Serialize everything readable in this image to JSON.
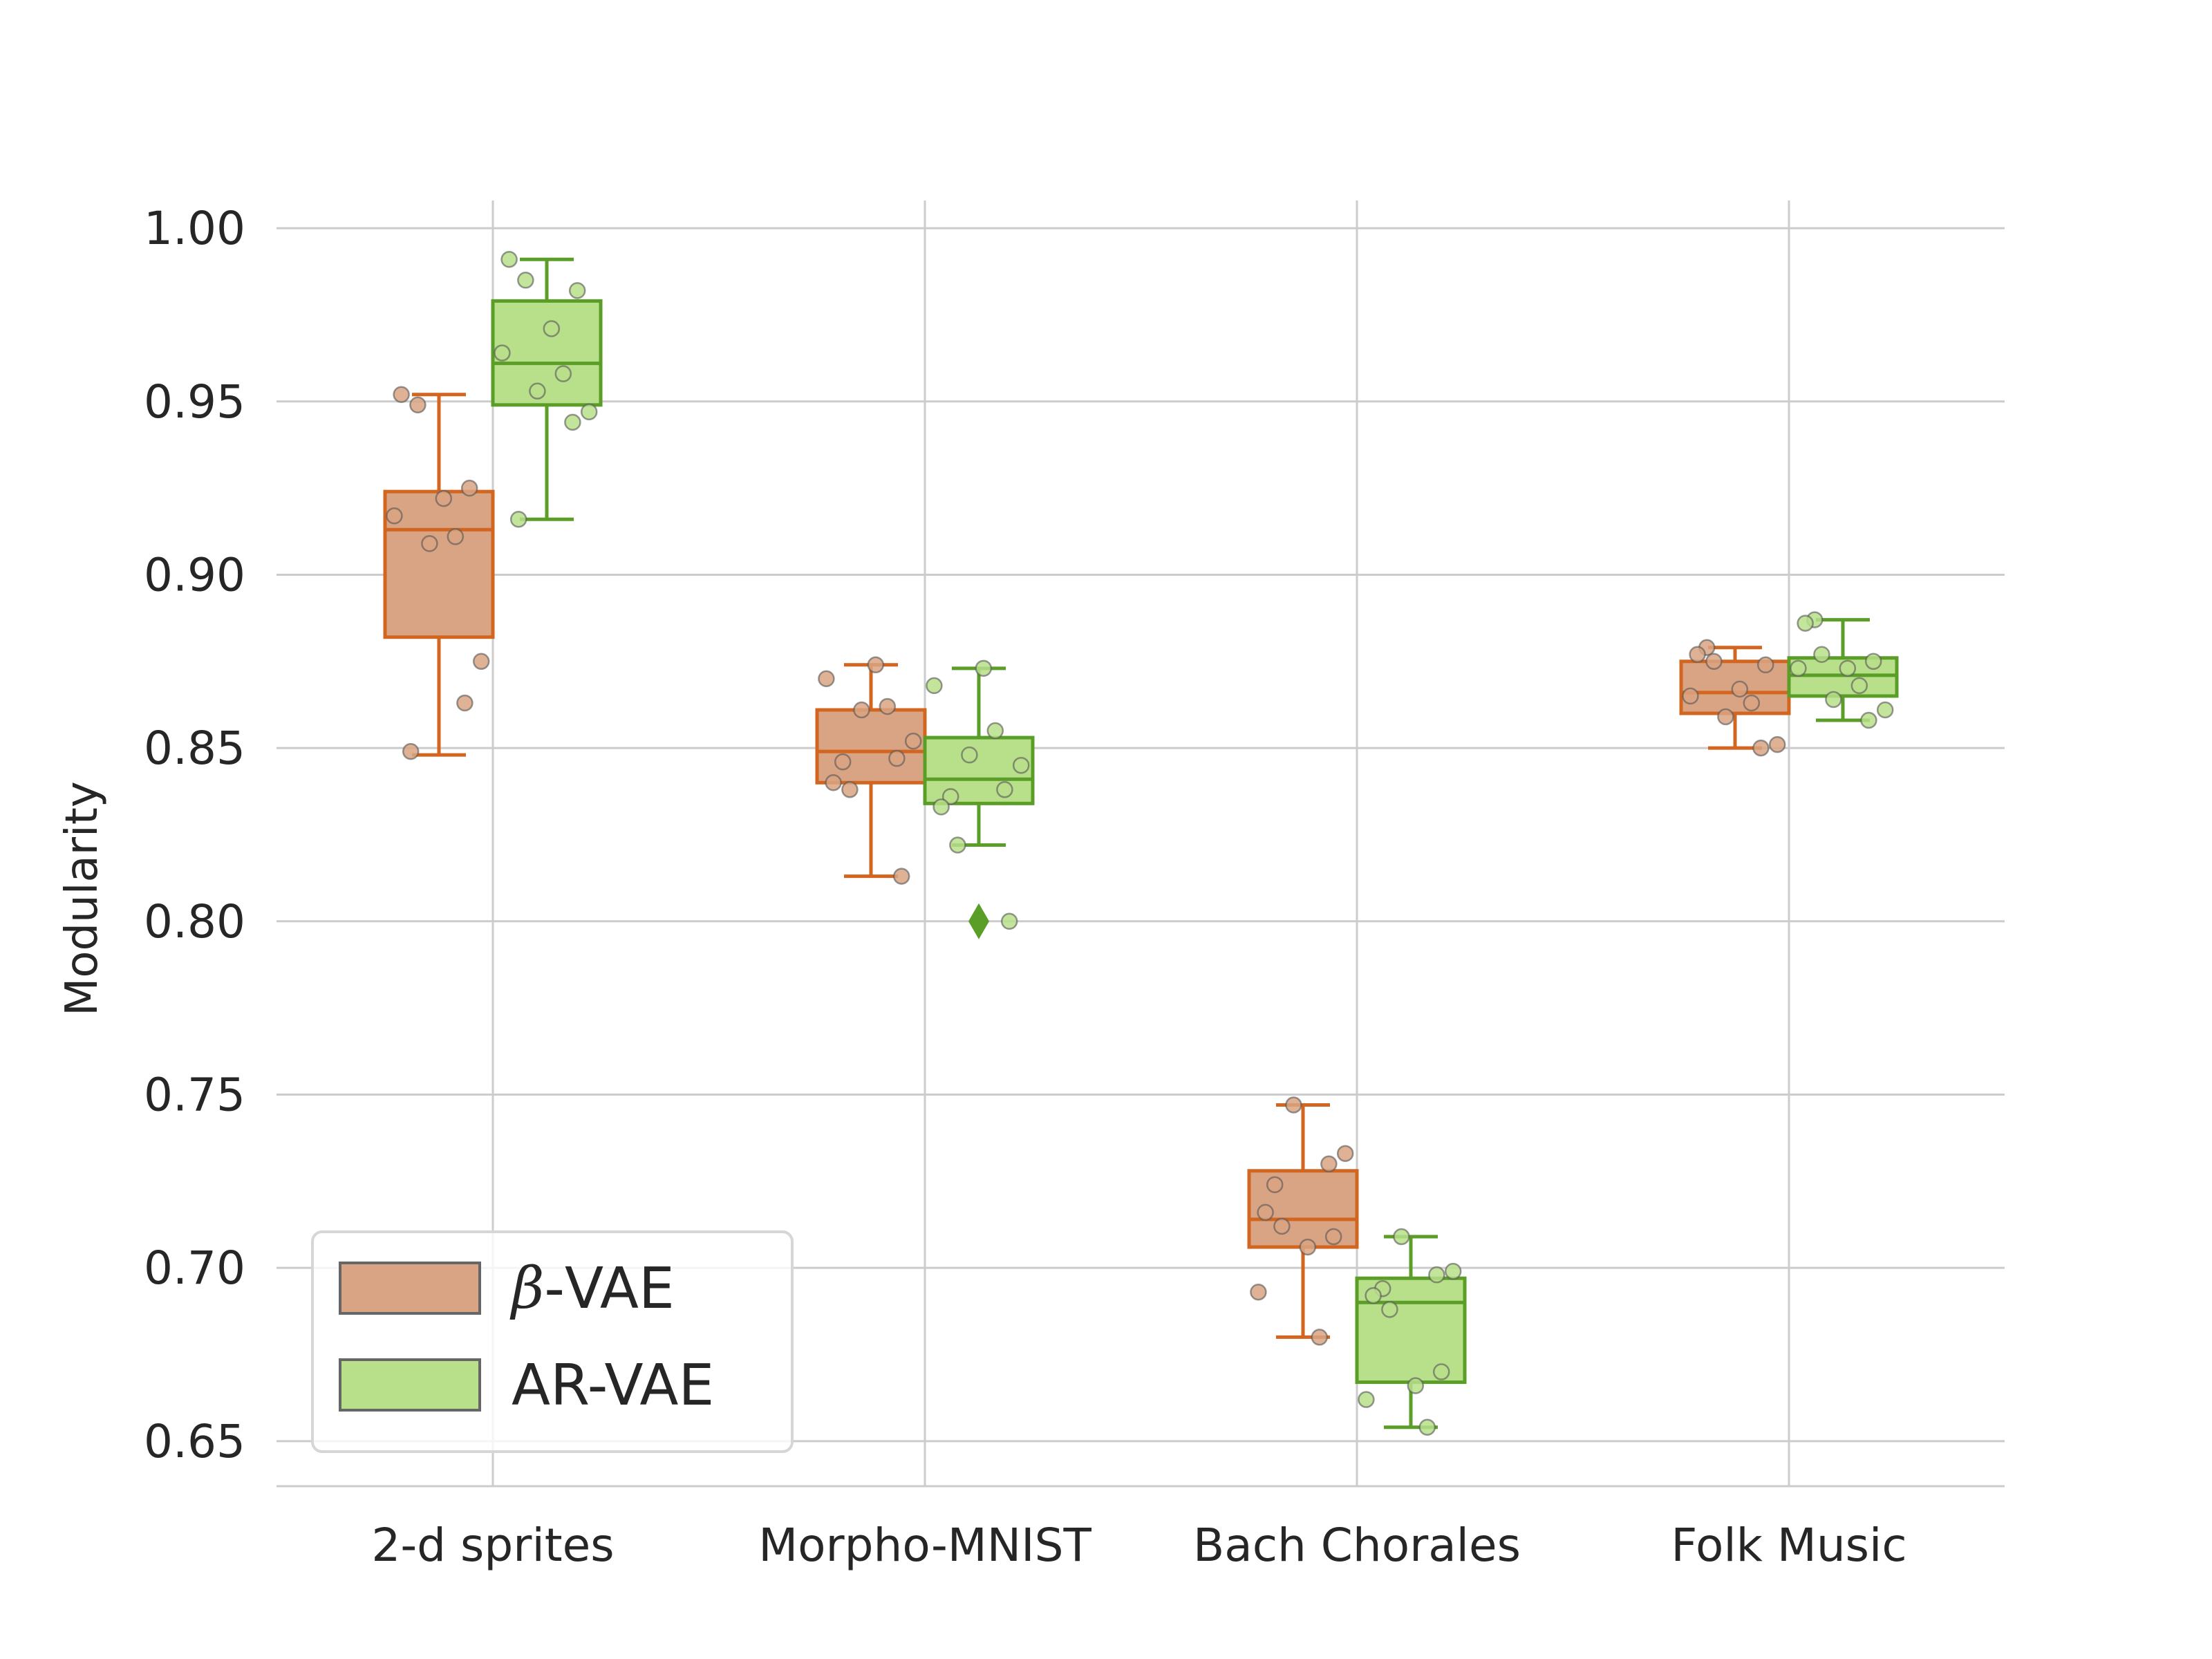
{
  "chart_data": {
    "type": "box",
    "title": "",
    "xlabel": "",
    "ylabel": "Modularity",
    "ylim": [
      0.637,
      1.008
    ],
    "yticks": [
      "0.65",
      "0.70",
      "0.75",
      "0.80",
      "0.85",
      "0.90",
      "0.95",
      "1.00"
    ],
    "grid": true,
    "legend_position": "lower-left",
    "categories": [
      "2-d sprites",
      "Morpho-MNIST",
      "Bach Chorales",
      "Folk Music"
    ],
    "series": [
      {
        "name": "β-VAE",
        "legend_symbol": "β",
        "legend_suffix": "-VAE",
        "fill": "#d9a483",
        "edge": "#d2651f",
        "boxes": [
          {
            "whislo": 0.848,
            "q1": 0.882,
            "med": 0.913,
            "q3": 0.924,
            "whishi": 0.952,
            "fliers": [],
            "points": [
              0.952,
              0.949,
              0.925,
              0.922,
              0.917,
              0.911,
              0.909,
              0.875,
              0.863,
              0.849
            ]
          },
          {
            "whislo": 0.813,
            "q1": 0.84,
            "med": 0.849,
            "q3": 0.861,
            "whishi": 0.874,
            "fliers": [],
            "points": [
              0.874,
              0.87,
              0.862,
              0.861,
              0.852,
              0.847,
              0.846,
              0.84,
              0.838,
              0.813
            ]
          },
          {
            "whislo": 0.68,
            "q1": 0.706,
            "med": 0.714,
            "q3": 0.728,
            "whishi": 0.747,
            "fliers": [],
            "points": [
              0.747,
              0.733,
              0.73,
              0.724,
              0.716,
              0.712,
              0.709,
              0.706,
              0.693,
              0.68
            ]
          },
          {
            "whislo": 0.85,
            "q1": 0.86,
            "med": 0.866,
            "q3": 0.875,
            "whishi": 0.879,
            "fliers": [],
            "points": [
              0.879,
              0.877,
              0.875,
              0.874,
              0.867,
              0.865,
              0.863,
              0.859,
              0.851,
              0.85
            ]
          }
        ]
      },
      {
        "name": "AR-VAE",
        "fill": "#b8df8a",
        "edge": "#5a9e28",
        "boxes": [
          {
            "whislo": 0.916,
            "q1": 0.949,
            "med": 0.961,
            "q3": 0.979,
            "whishi": 0.991,
            "fliers": [],
            "points": [
              0.991,
              0.985,
              0.982,
              0.971,
              0.964,
              0.958,
              0.953,
              0.947,
              0.944,
              0.916
            ]
          },
          {
            "whislo": 0.822,
            "q1": 0.834,
            "med": 0.841,
            "q3": 0.853,
            "whishi": 0.873,
            "fliers": [
              0.8
            ],
            "points": [
              0.873,
              0.868,
              0.855,
              0.848,
              0.845,
              0.838,
              0.836,
              0.833,
              0.822,
              0.8
            ]
          },
          {
            "whislo": 0.654,
            "q1": 0.667,
            "med": 0.69,
            "q3": 0.697,
            "whishi": 0.709,
            "fliers": [],
            "points": [
              0.709,
              0.699,
              0.698,
              0.694,
              0.692,
              0.688,
              0.67,
              0.666,
              0.662,
              0.654
            ]
          },
          {
            "whislo": 0.858,
            "q1": 0.865,
            "med": 0.871,
            "q3": 0.876,
            "whishi": 0.887,
            "fliers": [],
            "points": [
              0.887,
              0.886,
              0.877,
              0.875,
              0.873,
              0.873,
              0.868,
              0.864,
              0.861,
              0.858
            ]
          }
        ]
      }
    ]
  }
}
